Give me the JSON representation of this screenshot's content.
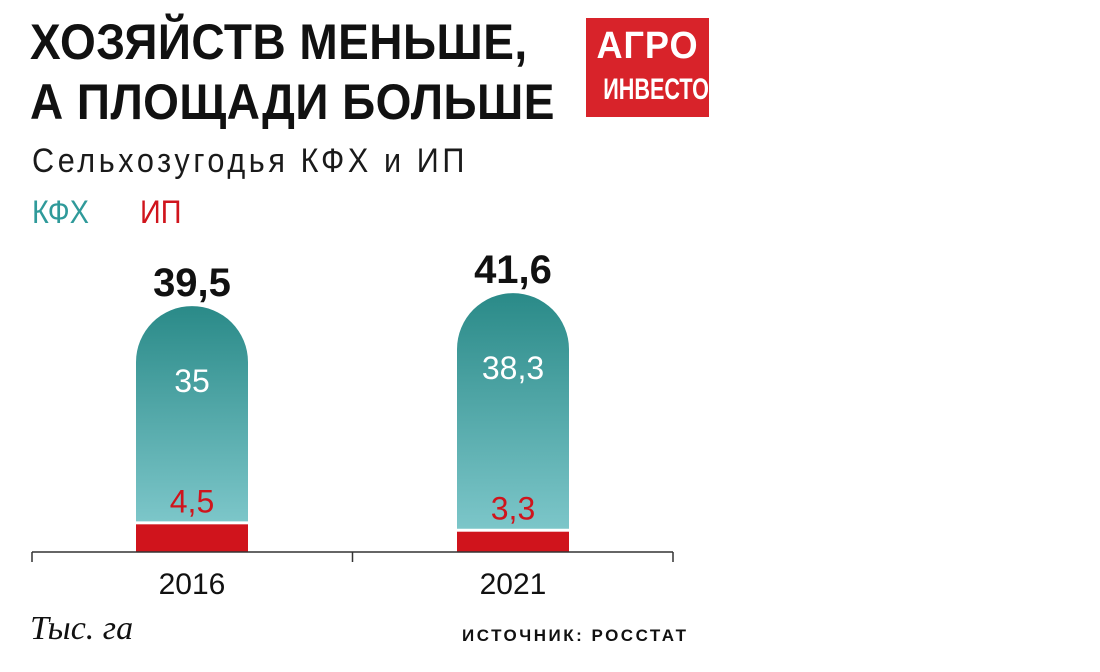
{
  "title": {
    "line1": "ХОЗЯЙСТВ МЕНЬШЕ,",
    "line2": "А ПЛОЩАДИ БОЛЬШЕ"
  },
  "subtitle": "Сельхозугодья КФХ и ИП",
  "logo": {
    "line1": "АГРО",
    "line2": "ИНВЕСТОР"
  },
  "unit_label": "Тыс. га",
  "source": "ИСТОЧНИК: РОССТАТ",
  "colors": {
    "kfh_top": "#2a8a88",
    "kfh_bottom": "#7cc6c9",
    "ip": "#d0141c",
    "logo": "#d8232a"
  },
  "chart_data": {
    "type": "bar",
    "stacked": true,
    "title": "ХОЗЯЙСТВ МЕНЬШЕ, А ПЛОЩАДИ БОЛЬШЕ",
    "subtitle": "Сельхозугодья КФХ и ИП",
    "categories": [
      "2016",
      "2021"
    ],
    "series": [
      {
        "name": "ИП",
        "values": [
          4.5,
          3.3
        ],
        "color": "#d0141c"
      },
      {
        "name": "КФХ",
        "values": [
          35,
          38.3
        ],
        "color": "#2a8a88"
      }
    ],
    "totals": [
      39.5,
      41.6
    ],
    "total_labels": [
      "39,5",
      "41,6"
    ],
    "value_labels": {
      "ИП": [
        "4,5",
        "3,3"
      ],
      "КФХ": [
        "35",
        "38,3"
      ]
    },
    "legend": [
      "КФХ",
      "ИП"
    ],
    "legend_position": "top-left",
    "ylabel": "Тыс. га",
    "grid": false
  }
}
